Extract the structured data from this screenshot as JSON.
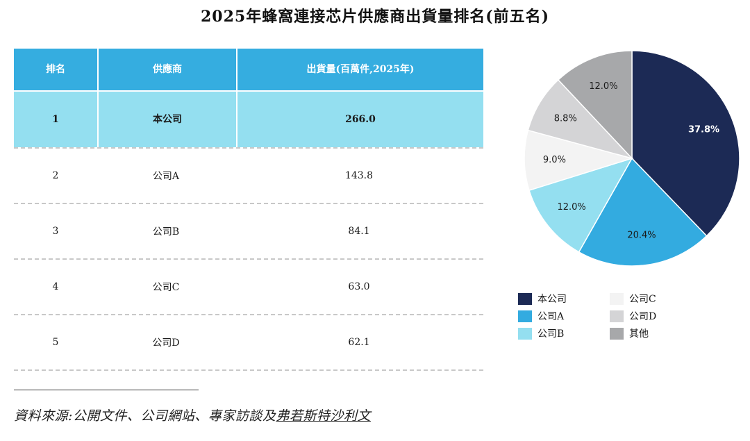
{
  "title": "2025年蜂窩連接芯片供應商出貨量排名(前五名)",
  "table": {
    "headers": [
      "排名",
      "供應商",
      "出貨量(百萬件,2025年)"
    ],
    "rows": [
      {
        "rank": "1",
        "supplier": "本公司",
        "value": "266.0"
      },
      {
        "rank": "2",
        "supplier": "公司A",
        "value": "143.8"
      },
      {
        "rank": "3",
        "supplier": "公司B",
        "value": "84.1"
      },
      {
        "rank": "4",
        "supplier": "公司C",
        "value": "63.0"
      },
      {
        "rank": "5",
        "supplier": "公司D",
        "value": "62.1"
      }
    ]
  },
  "source": {
    "prefix": "資料來源:公開文件、公司網站、專家訪談及",
    "underlined": "弗若斯特沙利文"
  },
  "chart_data": {
    "type": "pie",
    "series": [
      {
        "name": "本公司",
        "value": 37.8,
        "label": "37.8%",
        "color": "#1c2a55",
        "label_color": "#ffffff"
      },
      {
        "name": "公司A",
        "value": 20.4,
        "label": "20.4%",
        "color": "#33abe0",
        "label_color": "#1a1a1a"
      },
      {
        "name": "公司B",
        "value": 12.0,
        "label": "12.0%",
        "color": "#94dff0",
        "label_color": "#1a1a1a"
      },
      {
        "name": "公司C",
        "value": 9.0,
        "label": "9.0%",
        "color": "#f3f3f3",
        "label_color": "#1a1a1a"
      },
      {
        "name": "公司D",
        "value": 8.8,
        "label": "8.8%",
        "color": "#d4d4d6",
        "label_color": "#1a1a1a"
      },
      {
        "name": "其他",
        "value": 12.0,
        "label": "12.0%",
        "color": "#a7a8aa",
        "label_color": "#1a1a1a"
      }
    ],
    "legend_placement": "bottom"
  }
}
